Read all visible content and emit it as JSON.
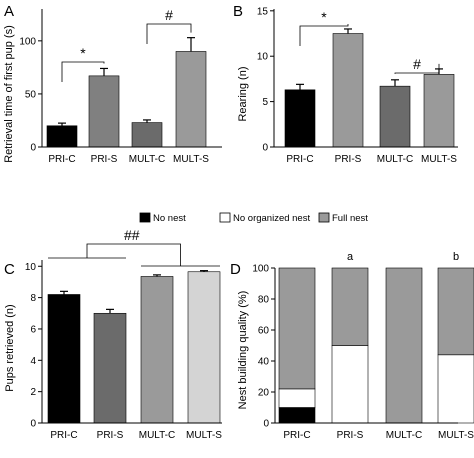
{
  "chart_data": [
    {
      "panel": "A",
      "type": "bar",
      "categories": [
        "PRI-C",
        "PRI-S",
        "MULT-C",
        "MULT-S"
      ],
      "values": [
        20,
        67,
        23,
        90
      ],
      "errors": [
        2.5,
        7,
        2.5,
        13
      ],
      "colors": [
        "#000000",
        "#808080",
        "#6b6b6b",
        "#9a9a9a"
      ],
      "ylabel": "Retrieval time of first pup (s)",
      "ylim": [
        0,
        130
      ],
      "yticks": [
        0,
        50,
        100
      ],
      "annotations": [
        {
          "text": "*",
          "between": [
            0,
            1
          ]
        },
        {
          "text": "#",
          "between": [
            2,
            3
          ]
        }
      ]
    },
    {
      "panel": "B",
      "type": "bar",
      "categories": [
        "PRI-C",
        "PRI-S",
        "MULT-C",
        "MULT-S"
      ],
      "values": [
        6.3,
        12.5,
        6.7,
        8.0
      ],
      "errors": [
        0.6,
        0.5,
        0.7,
        0.6
      ],
      "colors": [
        "#000000",
        "#9a9a9a",
        "#6b6b6b",
        "#9a9a9a"
      ],
      "ylabel": "Rearing (n)",
      "ylim": [
        0,
        15.2
      ],
      "yticks": [
        0,
        5,
        10,
        15
      ],
      "annotations": [
        {
          "text": "*",
          "between": [
            0,
            1
          ]
        },
        {
          "text": "#",
          "between": [
            2,
            3
          ]
        }
      ]
    },
    {
      "panel": "C",
      "type": "bar",
      "categories": [
        "PRI-C",
        "PRI-S",
        "MULT-C",
        "MULT-S"
      ],
      "values": [
        8.2,
        7.0,
        9.35,
        9.65
      ],
      "errors": [
        0.2,
        0.25,
        0.1,
        0.07
      ],
      "colors": [
        "#000000",
        "#6b6b6b",
        "#9a9a9a",
        "#d4d4d4"
      ],
      "ylabel": "Pups retrieved (n)",
      "ylim": [
        0,
        10.4
      ],
      "yticks": [
        0,
        2,
        4,
        6,
        8,
        10
      ],
      "annotations": [
        {
          "text": "##",
          "groups": [
            [
              0,
              1
            ],
            [
              2,
              3
            ]
          ]
        }
      ]
    },
    {
      "panel": "D",
      "type": "stacked-bar",
      "categories": [
        "PRI-C",
        "PRI-S",
        "MULT-C",
        "MULT-S"
      ],
      "series": [
        {
          "name": "No nest",
          "values": [
            10,
            0,
            0,
            0
          ],
          "color": "#000000"
        },
        {
          "name": "No organized nest",
          "values": [
            12,
            50,
            0,
            44
          ],
          "color": "#ffffff"
        },
        {
          "name": "Full nest",
          "values": [
            78,
            50,
            100,
            56
          ],
          "color": "#9a9a9a"
        }
      ],
      "ylabel": "Nest building quality (%)",
      "ylim": [
        0,
        100
      ],
      "yticks": [
        0,
        20,
        40,
        60,
        80,
        100
      ],
      "annotations": [
        {
          "text": "a",
          "bar": 1
        },
        {
          "text": "b",
          "bar": 3
        }
      ]
    }
  ]
}
